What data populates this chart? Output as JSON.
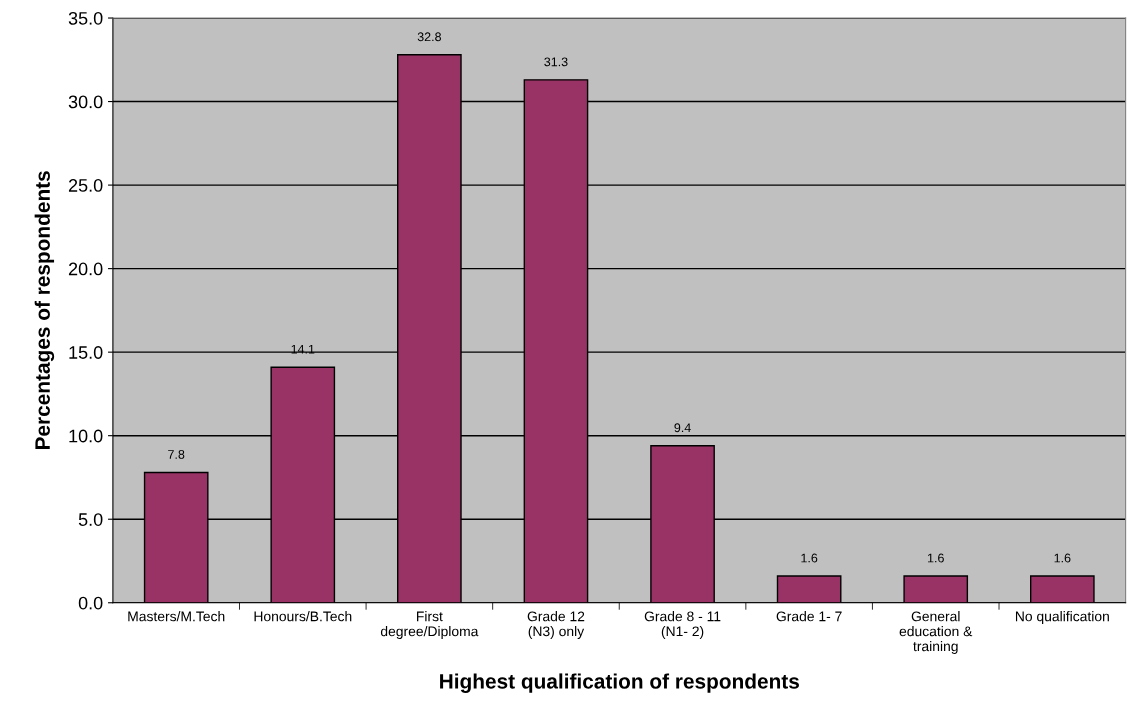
{
  "chart_data": {
    "type": "bar",
    "xlabel": "Highest qualification of respondents",
    "ylabel": "Percentages of respondents",
    "categories": [
      "Masters/M.Tech",
      "Honours/B.Tech",
      "First\ndegree/Diploma",
      "Grade 12\n(N3) only",
      "Grade 8 - 11\n(N1- 2)",
      "Grade 1- 7",
      "General\neducation &\ntraining",
      "No qualification"
    ],
    "values": [
      7.8,
      14.1,
      32.8,
      31.3,
      9.4,
      1.6,
      1.6,
      1.6
    ],
    "color": "#993366",
    "data_labels": true,
    "ylim": [
      0,
      35
    ],
    "yticks": [
      {
        "value": 0,
        "label": "0.0"
      },
      {
        "value": 5,
        "label": "5.0"
      },
      {
        "value": 10,
        "label": "10.0"
      },
      {
        "value": 15,
        "label": "15.0"
      },
      {
        "value": 20,
        "label": "20.0"
      },
      {
        "value": 25,
        "label": "25.0"
      },
      {
        "value": 30,
        "label": "30.0"
      },
      {
        "value": 35,
        "label": "35.0"
      }
    ],
    "grid": "y",
    "legend": false
  }
}
